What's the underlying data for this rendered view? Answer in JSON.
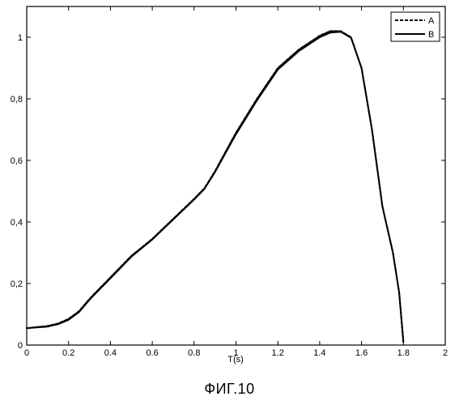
{
  "figure_caption": "ФИГ.10",
  "chart_data": {
    "type": "line",
    "xlabel": "T(s)",
    "ylabel": "",
    "xlim": [
      0,
      2
    ],
    "ylim": [
      0,
      1.1
    ],
    "xticks": [
      0,
      0.2,
      0.4,
      0.6,
      0.8,
      1,
      1.2,
      1.4,
      1.6,
      1.8,
      2
    ],
    "xtick_labels": [
      "0",
      "0.2",
      "0.4",
      "0.6",
      "0.8",
      "1",
      "1.2",
      "1.4",
      "1.6",
      "1.8",
      "2"
    ],
    "yticks": [
      0,
      0.2,
      0.4,
      0.6,
      0.8,
      1
    ],
    "ytick_labels": [
      "0",
      "0,2",
      "0,4",
      "0,6",
      "0,8",
      "1"
    ],
    "grid": false,
    "legend_position": "top-right",
    "series": [
      {
        "name": "A",
        "style": "dashed",
        "color": "#000000",
        "x": [
          0,
          0.1,
          0.15,
          0.2,
          0.25,
          0.3,
          0.4,
          0.5,
          0.6,
          0.7,
          0.8,
          0.85,
          0.9,
          1.0,
          1.1,
          1.2,
          1.3,
          1.4,
          1.45,
          1.5,
          1.55,
          1.6,
          1.65,
          1.7,
          1.75,
          1.78,
          1.8
        ],
        "y": [
          0.055,
          0.062,
          0.07,
          0.085,
          0.11,
          0.15,
          0.22,
          0.29,
          0.345,
          0.41,
          0.475,
          0.51,
          0.565,
          0.69,
          0.8,
          0.9,
          0.96,
          1.005,
          1.02,
          1.02,
          1.0,
          0.9,
          0.7,
          0.45,
          0.3,
          0.17,
          0.01
        ]
      },
      {
        "name": "B",
        "style": "solid",
        "color": "#000000",
        "x": [
          0,
          0.1,
          0.15,
          0.2,
          0.25,
          0.3,
          0.4,
          0.5,
          0.6,
          0.7,
          0.8,
          0.85,
          0.9,
          1.0,
          1.1,
          1.2,
          1.3,
          1.4,
          1.45,
          1.5,
          1.55,
          1.6,
          1.65,
          1.7,
          1.75,
          1.78,
          1.8
        ],
        "y": [
          0.055,
          0.06,
          0.068,
          0.082,
          0.107,
          0.147,
          0.217,
          0.287,
          0.343,
          0.408,
          0.473,
          0.508,
          0.562,
          0.685,
          0.795,
          0.895,
          0.955,
          1.0,
          1.015,
          1.018,
          0.998,
          0.9,
          0.7,
          0.45,
          0.3,
          0.17,
          0.01
        ]
      }
    ]
  }
}
